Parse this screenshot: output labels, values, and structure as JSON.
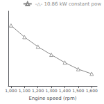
{
  "chart_data": {
    "type": "line",
    "x": [
      1000,
      1100,
      1200,
      1300,
      1400,
      1500,
      1600
    ],
    "series": [
      {
        "name": "-△- 10.86 kW constant pow",
        "color": "#888888",
        "marker": "triangle",
        "values": [
          103.5,
          94.2,
          86.5,
          80.0,
          73.8,
          68.5,
          64.8
        ]
      }
    ],
    "xlabel": "Engine speed (rpm)",
    "xlim": [
      980,
      1640
    ],
    "xticks": [
      1000,
      1100,
      1200,
      1300,
      1400,
      1500,
      1600
    ],
    "ylim": [
      55,
      115
    ],
    "legend": "upper right",
    "tick_labels": "x",
    "grid": false
  }
}
